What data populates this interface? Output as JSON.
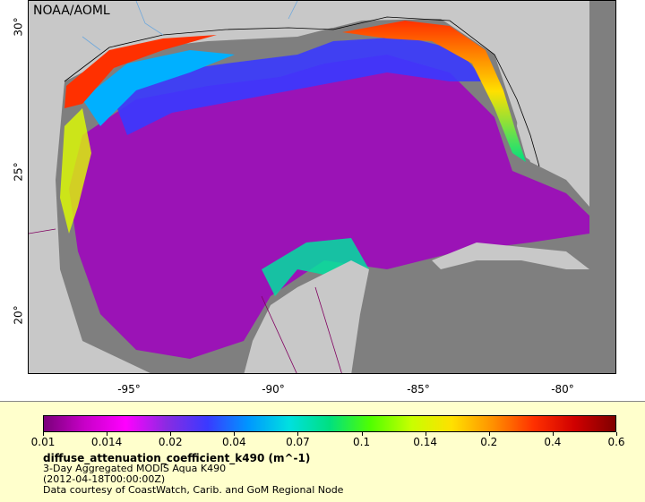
{
  "credit": "NOAA/AOML",
  "x_ticks": [
    "-95°",
    "-90°",
    "-85°",
    "-80°"
  ],
  "y_ticks": [
    "30°",
    "25°",
    "20°"
  ],
  "colorbar": {
    "labels": [
      "0.01",
      "0.014",
      "0.02",
      "0.04",
      "0.07",
      "0.1",
      "0.14",
      "0.2",
      "0.4",
      "0.6"
    ],
    "colors": [
      "#7a007a",
      "#c800c8",
      "#ff00ff",
      "#8a2be2",
      "#3a3aff",
      "#0096ff",
      "#00e0e0",
      "#00e080",
      "#50ff00",
      "#c8ff00",
      "#ffe000",
      "#ff9000",
      "#ff3000",
      "#d00000",
      "#800000"
    ]
  },
  "legend": {
    "variable": "diffuse_attenuation_coefficient_k490 (m^-1)",
    "line1": "3-Day Aggregated MODIS Aqua K490",
    "line2": "(2012-04-18T00:00:00Z)",
    "line3": "Data courtesy of CoastWatch, Carib. and GoM Regional Node"
  },
  "map": {
    "land_color": "#c8c8c8",
    "no_data_color": "#7f7f7f",
    "coast_color": "#000000",
    "river_color": "#6fa8dc",
    "border_color": "#800060"
  }
}
